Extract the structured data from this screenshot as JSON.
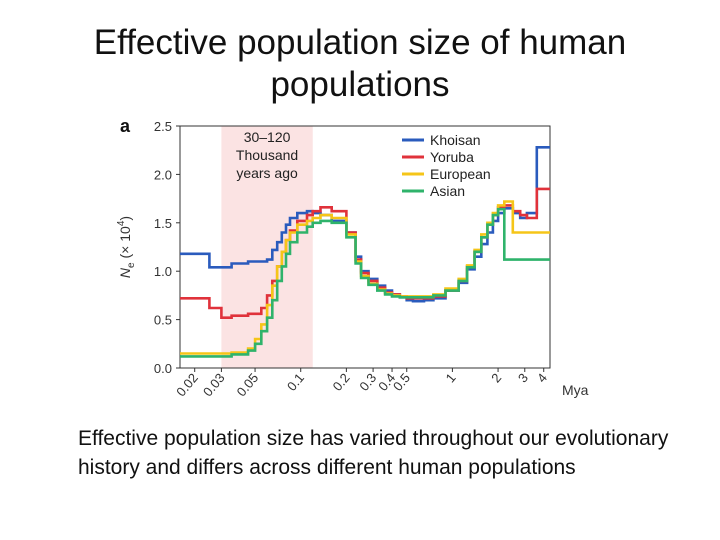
{
  "slide": {
    "title": "Effective population size of human populations",
    "caption": "Effective population size has varied throughout our evolutionary history and differs across different human populations"
  },
  "chart_data": {
    "type": "line",
    "panel_label": "a",
    "xlabel": "Mya",
    "ylabel": {
      "main": "N",
      "sub": "e",
      "rest": "(× 10",
      "exp": "4",
      "close": ")"
    },
    "x_scale": "log",
    "xlim": [
      0.016,
      4.4
    ],
    "ylim": [
      0,
      2.5
    ],
    "yticks": [
      "0.0",
      "0.5",
      "1.0",
      "1.5",
      "2.0",
      "2.5"
    ],
    "xticks": [
      {
        "value": 0.02,
        "label": "0.02"
      },
      {
        "value": 0.03,
        "label": "0.03"
      },
      {
        "value": 0.05,
        "label": "0.05"
      },
      {
        "value": 0.1,
        "label": "0.1"
      },
      {
        "value": 0.2,
        "label": "0.2"
      },
      {
        "value": 0.3,
        "label": "0.3"
      },
      {
        "value": 0.4,
        "label": "0.4"
      },
      {
        "value": 0.5,
        "label": "0.5"
      },
      {
        "value": 1,
        "label": "1"
      },
      {
        "value": 2,
        "label": "2"
      },
      {
        "value": 3,
        "label": "3"
      },
      {
        "value": 4,
        "label": "4"
      }
    ],
    "shaded_region": {
      "x": [
        0.03,
        0.12
      ],
      "label_lines": [
        "30–120",
        "Thousand",
        "years ago"
      ],
      "color": "#fbe3e3"
    },
    "legend_position": "top-right",
    "series": [
      {
        "name": "Khoisan",
        "color": "#2a5bbd",
        "x": [
          0.016,
          0.025,
          0.035,
          0.045,
          0.06,
          0.065,
          0.07,
          0.075,
          0.08,
          0.085,
          0.095,
          0.11,
          0.12,
          0.135,
          0.16,
          0.2,
          0.23,
          0.25,
          0.28,
          0.32,
          0.36,
          0.4,
          0.45,
          0.5,
          0.55,
          0.65,
          0.75,
          0.9,
          1.1,
          1.25,
          1.4,
          1.55,
          1.7,
          1.85,
          2.0,
          2.2,
          2.5,
          2.8,
          3.1,
          3.6,
          4.4
        ],
        "y": [
          1.18,
          1.04,
          1.08,
          1.1,
          1.12,
          1.22,
          1.3,
          1.4,
          1.48,
          1.55,
          1.6,
          1.62,
          1.6,
          1.58,
          1.52,
          1.4,
          1.15,
          1.0,
          0.92,
          0.85,
          0.8,
          0.76,
          0.73,
          0.7,
          0.69,
          0.7,
          0.72,
          0.8,
          0.88,
          1.02,
          1.15,
          1.28,
          1.4,
          1.52,
          1.6,
          1.65,
          1.6,
          1.55,
          1.6,
          2.28,
          2.28
        ]
      },
      {
        "name": "Yoruba",
        "color": "#e0323b",
        "x": [
          0.016,
          0.025,
          0.03,
          0.035,
          0.045,
          0.055,
          0.06,
          0.065,
          0.07,
          0.075,
          0.08,
          0.085,
          0.095,
          0.11,
          0.12,
          0.135,
          0.16,
          0.2,
          0.23,
          0.25,
          0.28,
          0.32,
          0.36,
          0.4,
          0.45,
          0.5,
          0.55,
          0.65,
          0.75,
          0.9,
          1.1,
          1.25,
          1.4,
          1.55,
          1.7,
          1.85,
          2.0,
          2.2,
          2.5,
          2.8,
          3.1,
          3.6,
          4.4
        ],
        "y": [
          0.72,
          0.62,
          0.52,
          0.54,
          0.56,
          0.62,
          0.75,
          0.9,
          1.05,
          1.2,
          1.32,
          1.42,
          1.52,
          1.58,
          1.62,
          1.66,
          1.62,
          1.4,
          1.12,
          0.98,
          0.9,
          0.83,
          0.78,
          0.76,
          0.74,
          0.72,
          0.72,
          0.72,
          0.74,
          0.8,
          0.9,
          1.05,
          1.2,
          1.35,
          1.48,
          1.58,
          1.66,
          1.68,
          1.62,
          1.58,
          1.55,
          1.85,
          1.85
        ]
      },
      {
        "name": "European",
        "color": "#f5c518",
        "x": [
          0.016,
          0.025,
          0.035,
          0.045,
          0.05,
          0.055,
          0.06,
          0.065,
          0.07,
          0.075,
          0.08,
          0.085,
          0.095,
          0.11,
          0.12,
          0.135,
          0.16,
          0.2,
          0.23,
          0.25,
          0.28,
          0.32,
          0.36,
          0.4,
          0.45,
          0.5,
          0.55,
          0.65,
          0.75,
          0.9,
          1.1,
          1.25,
          1.4,
          1.55,
          1.7,
          1.85,
          2.0,
          2.2,
          2.5,
          2.8,
          3.1,
          3.6,
          4.4
        ],
        "y": [
          0.15,
          0.15,
          0.16,
          0.2,
          0.3,
          0.45,
          0.65,
          0.85,
          1.05,
          1.2,
          1.32,
          1.4,
          1.48,
          1.52,
          1.55,
          1.58,
          1.55,
          1.38,
          1.1,
          0.95,
          0.87,
          0.81,
          0.77,
          0.75,
          0.74,
          0.74,
          0.74,
          0.74,
          0.76,
          0.82,
          0.92,
          1.06,
          1.22,
          1.38,
          1.5,
          1.6,
          1.68,
          1.72,
          1.4,
          1.4,
          1.4,
          1.4,
          1.4
        ]
      },
      {
        "name": "Asian",
        "color": "#2fb36b",
        "x": [
          0.016,
          0.025,
          0.035,
          0.045,
          0.05,
          0.055,
          0.06,
          0.065,
          0.07,
          0.075,
          0.08,
          0.085,
          0.095,
          0.11,
          0.12,
          0.135,
          0.16,
          0.2,
          0.23,
          0.25,
          0.28,
          0.32,
          0.36,
          0.4,
          0.45,
          0.5,
          0.55,
          0.65,
          0.75,
          0.9,
          1.1,
          1.25,
          1.4,
          1.55,
          1.7,
          1.85,
          2.0,
          2.2,
          2.5,
          2.8,
          3.1,
          3.6,
          4.4
        ],
        "y": [
          0.12,
          0.12,
          0.14,
          0.18,
          0.25,
          0.38,
          0.52,
          0.7,
          0.9,
          1.05,
          1.18,
          1.3,
          1.4,
          1.46,
          1.5,
          1.52,
          1.5,
          1.35,
          1.08,
          0.93,
          0.86,
          0.8,
          0.76,
          0.74,
          0.73,
          0.73,
          0.73,
          0.73,
          0.75,
          0.8,
          0.9,
          1.04,
          1.2,
          1.35,
          1.48,
          1.58,
          1.64,
          1.12,
          1.12,
          1.12,
          1.12,
          1.12,
          1.12
        ]
      }
    ]
  }
}
